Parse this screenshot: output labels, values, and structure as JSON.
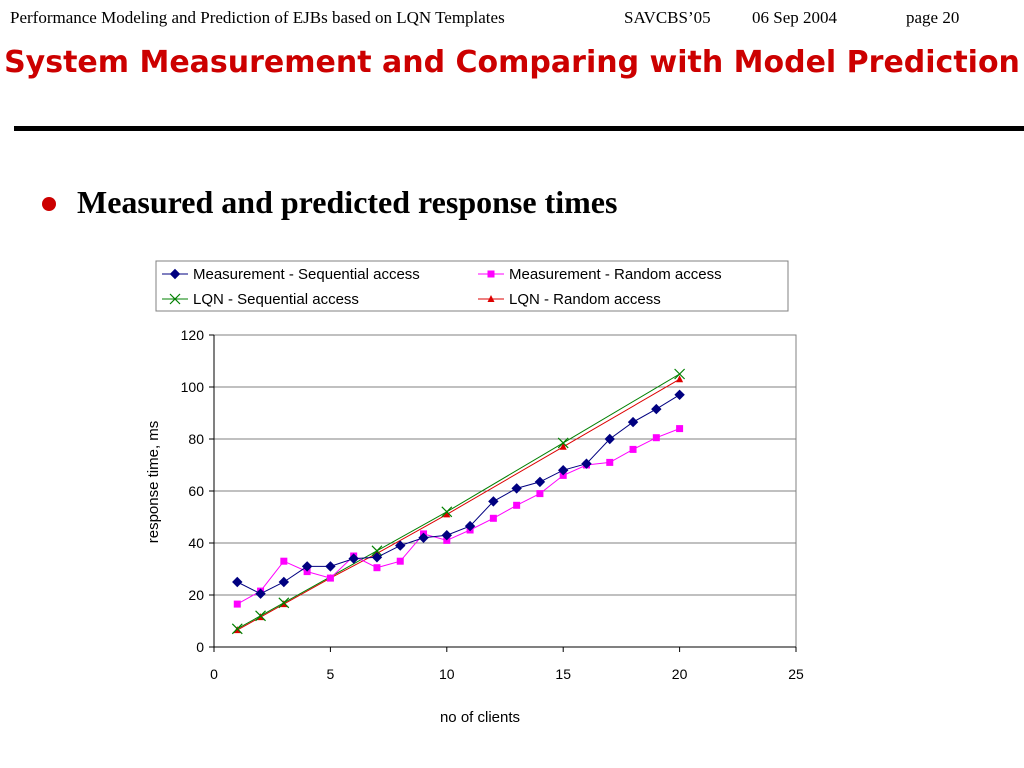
{
  "header": {
    "talk_title": "Performance Modeling and Prediction of EJBs based on LQN Templates",
    "venue": "SAVCBS’05",
    "date": "06 Sep 2004",
    "page": "page 20"
  },
  "slide_title": "System Measurement and Comparing with Model Prediction",
  "bullet": "Measured and predicted response times",
  "colors": {
    "title": "#cc0000",
    "bullet": "#cc0000",
    "seq_measure": "#000080",
    "rand_measure": "#ff00ff",
    "lqn_seq": "#008000",
    "lqn_rand": "#dd0000"
  },
  "chart_data": {
    "type": "line",
    "title": "",
    "xlabel": "no of clients",
    "ylabel": "response time, ms",
    "xlim": [
      0,
      25
    ],
    "ylim": [
      0,
      120
    ],
    "xticks": [
      0,
      5,
      10,
      15,
      20,
      25
    ],
    "yticks": [
      0,
      20,
      40,
      60,
      80,
      100,
      120
    ],
    "grid": "horizontal",
    "legend_position": "top",
    "series": [
      {
        "name": "Measurement - Sequential access",
        "marker": "diamond",
        "color": "#000080",
        "x": [
          1,
          2,
          3,
          4,
          5,
          6,
          7,
          8,
          9,
          10,
          11,
          12,
          13,
          14,
          15,
          16,
          17,
          18,
          19,
          20
        ],
        "y": [
          25,
          20.5,
          25,
          31,
          31,
          34,
          34.5,
          39,
          42,
          43,
          46.5,
          56,
          61,
          63.5,
          68,
          70.5,
          80,
          86.5,
          91.5,
          97
        ]
      },
      {
        "name": "Measurement - Random access",
        "marker": "square",
        "color": "#ff00ff",
        "x": [
          1,
          2,
          3,
          4,
          5,
          6,
          7,
          8,
          9,
          10,
          11,
          12,
          13,
          14,
          15,
          16,
          17,
          18,
          19,
          20
        ],
        "y": [
          16.5,
          21.5,
          33,
          29,
          26.5,
          35,
          30.5,
          33,
          43.5,
          41,
          45,
          49.5,
          54.5,
          59,
          66,
          70,
          71,
          76,
          80.5,
          84
        ]
      },
      {
        "name": "LQN - Sequential access",
        "marker": "x",
        "color": "#008000",
        "x": [
          1,
          2,
          3,
          7,
          10,
          15,
          20
        ],
        "y": [
          7,
          12,
          17,
          37,
          52,
          78.5,
          105
        ]
      },
      {
        "name": "LQN - Random access",
        "marker": "triangle",
        "color": "#dd0000",
        "x": [
          1,
          2,
          3,
          5,
          7,
          10,
          15,
          20
        ],
        "y": [
          6.5,
          11.5,
          16.5,
          26.5,
          36,
          51,
          77,
          103
        ]
      }
    ]
  }
}
